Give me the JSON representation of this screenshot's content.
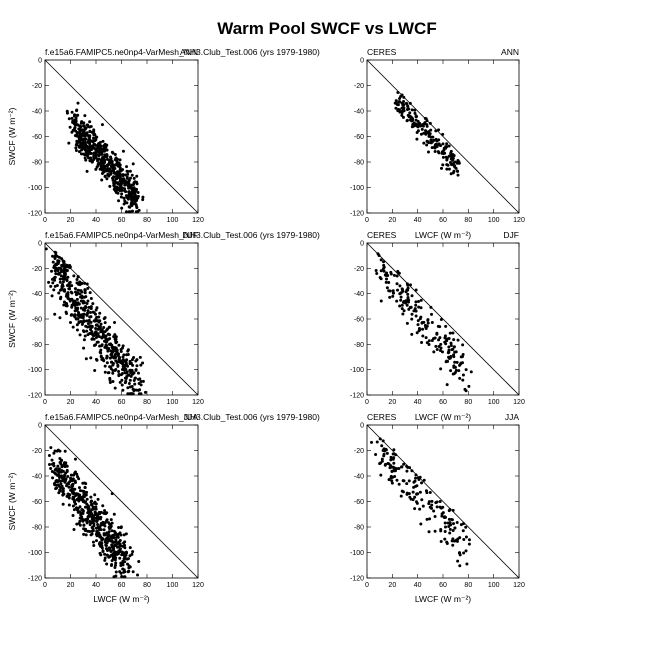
{
  "figure": {
    "title": "Warm Pool SWCF vs LWCF"
  },
  "chart_data": [
    {
      "type": "scatter",
      "panel": "model-ann",
      "left_label": "f.e15a6.FAMIPC5.ne0np4-VarMesh_NH3.Club_Test.006 (yrs 1979-1980)",
      "right_label": "ANN",
      "xlabel": "",
      "ylabel": "SWCF (W m⁻²)",
      "xlim": [
        0,
        120
      ],
      "ylim": [
        -120,
        0
      ],
      "x_ticks": [
        "0",
        "20",
        "40",
        "60",
        "80",
        "100",
        "120"
      ],
      "y_ticks": [
        "0",
        "-20",
        "-40",
        "-60",
        "-80",
        "-100",
        "-120"
      ],
      "reference_line": "y = -x",
      "clusters": [
        {
          "x0": 22,
          "y0": -48,
          "x1": 72,
          "y1": -110,
          "n": 520,
          "spread": 7
        },
        {
          "x0": 25,
          "y0": -62,
          "x1": 40,
          "y1": -76,
          "n": 60,
          "spread": 3
        }
      ]
    },
    {
      "type": "scatter",
      "panel": "obs-ann",
      "left_label": "CERES",
      "right_label": "ANN",
      "xlabel": "",
      "ylabel": "",
      "xlim": [
        0,
        120
      ],
      "ylim": [
        -120,
        0
      ],
      "x_ticks": [
        "0",
        "20",
        "40",
        "60",
        "80",
        "100",
        "120"
      ],
      "y_ticks": [
        "0",
        "-20",
        "-40",
        "-60",
        "-80",
        "-100",
        "-120"
      ],
      "reference_line": "y = -x",
      "clusters": [
        {
          "x0": 22,
          "y0": -30,
          "x1": 72,
          "y1": -85,
          "n": 190,
          "spread": 5
        }
      ]
    },
    {
      "type": "scatter",
      "panel": "model-djf",
      "left_label": "f.e15a6.FAMIPC5.ne0np4-VarMesh_NH3.Club_Test.006 (yrs 1979-1980)",
      "right_label": "DJF",
      "xlabel": "",
      "ylabel": "SWCF (W m⁻²)",
      "xlim": [
        0,
        120
      ],
      "ylim": [
        -120,
        0
      ],
      "x_ticks": [
        "0",
        "20",
        "40",
        "60",
        "80",
        "100",
        "120"
      ],
      "y_ticks": [
        "0",
        "-20",
        "-40",
        "-60",
        "-80",
        "-100",
        "-120"
      ],
      "reference_line": "y = -x",
      "clusters": [
        {
          "x0": 8,
          "y0": -20,
          "x1": 72,
          "y1": -115,
          "n": 560,
          "spread": 10
        }
      ]
    },
    {
      "type": "scatter",
      "panel": "obs-djf",
      "left_label": "CERES",
      "center_label": "LWCF (W m⁻²)",
      "right_label": "DJF",
      "xlabel": "",
      "ylabel": "",
      "xlim": [
        0,
        120
      ],
      "ylim": [
        -120,
        0
      ],
      "x_ticks": [
        "0",
        "20",
        "40",
        "60",
        "80",
        "100",
        "120"
      ],
      "y_ticks": [
        "0",
        "-20",
        "-40",
        "-60",
        "-80",
        "-100",
        "-120"
      ],
      "reference_line": "y = -x",
      "clusters": [
        {
          "x0": 10,
          "y0": -20,
          "x1": 80,
          "y1": -105,
          "n": 200,
          "spread": 9
        }
      ]
    },
    {
      "type": "scatter",
      "panel": "model-jja",
      "left_label": "f.e15a6.FAMIPC5.ne0np4-VarMesh_NH3.Club_Test.006 (yrs 1979-1980)",
      "right_label": "JJA",
      "xlabel": "LWCF (W m⁻²)",
      "ylabel": "SWCF (W m⁻²)",
      "xlim": [
        0,
        120
      ],
      "ylim": [
        -120,
        0
      ],
      "x_ticks": [
        "0",
        "20",
        "40",
        "60",
        "80",
        "100",
        "120"
      ],
      "y_ticks": [
        "0",
        "-20",
        "-40",
        "-60",
        "-80",
        "-100",
        "-120"
      ],
      "reference_line": "y = -x",
      "clusters": [
        {
          "x0": 8,
          "y0": -35,
          "x1": 65,
          "y1": -108,
          "n": 540,
          "spread": 9
        }
      ]
    },
    {
      "type": "scatter",
      "panel": "obs-jja",
      "left_label": "CERES",
      "center_label": "LWCF (W m⁻²)",
      "right_label": "JJA",
      "xlabel": "LWCF (W m⁻²)",
      "ylabel": "",
      "xlim": [
        0,
        120
      ],
      "ylim": [
        -120,
        0
      ],
      "x_ticks": [
        "0",
        "20",
        "40",
        "60",
        "80",
        "100",
        "120"
      ],
      "y_ticks": [
        "0",
        "-20",
        "-40",
        "-60",
        "-80",
        "-100",
        "-120"
      ],
      "reference_line": "y = -x",
      "clusters": [
        {
          "x0": 10,
          "y0": -20,
          "x1": 80,
          "y1": -95,
          "n": 180,
          "spread": 8
        }
      ]
    }
  ]
}
